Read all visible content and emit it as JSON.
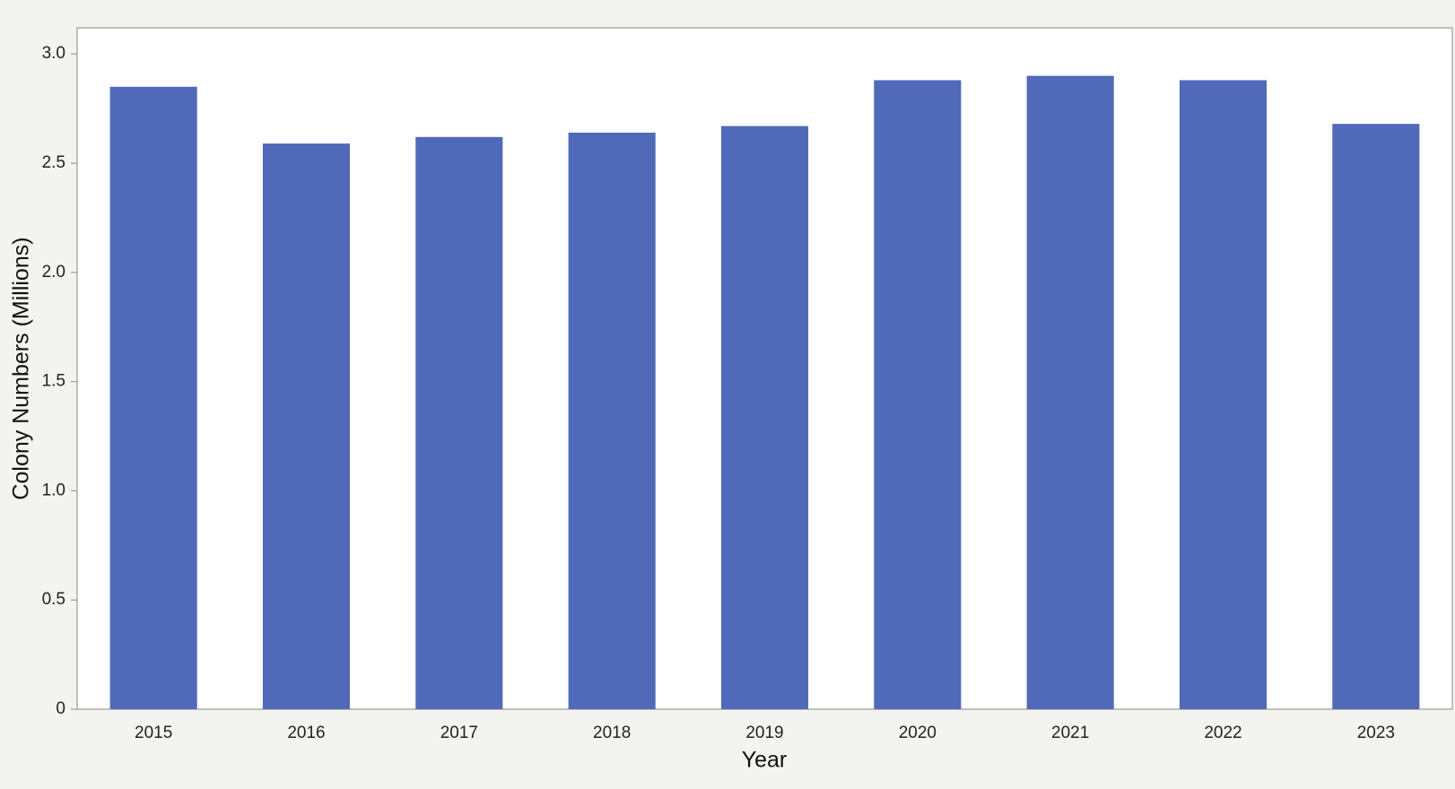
{
  "chart_data": {
    "type": "bar",
    "x_label": "Year",
    "y_label": "Colony Numbers (Millions)",
    "categories": [
      "2015",
      "2016",
      "2017",
      "2018",
      "2019",
      "2020",
      "2021",
      "2022",
      "2023"
    ],
    "values": [
      2.85,
      2.59,
      2.62,
      2.64,
      2.67,
      2.88,
      2.9,
      2.88,
      2.68
    ],
    "color": "#5069b8",
    "ylim": [
      0,
      3.12
    ],
    "yticks": [
      0,
      0.5,
      {
        "value": 1,
        "label": "1.0"
      },
      1.5,
      {
        "value": 2,
        "label": "2.0"
      },
      2.5,
      {
        "value": 3,
        "label": "3.0"
      }
    ]
  }
}
